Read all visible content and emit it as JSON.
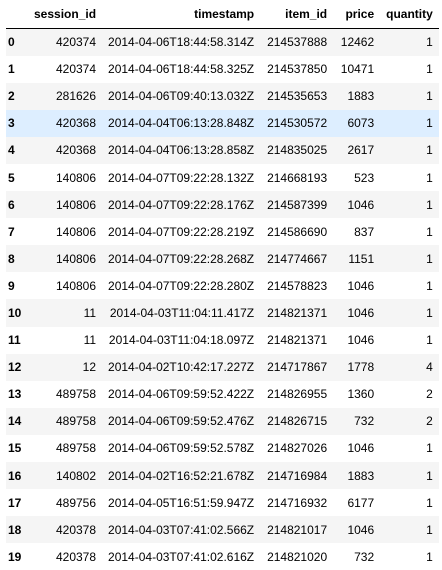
{
  "table": {
    "columns": [
      "",
      "session_id",
      "timestamp",
      "item_id",
      "price",
      "quantity"
    ],
    "highlighted_row": 3,
    "rows": [
      {
        "index": "0",
        "session_id": "420374",
        "timestamp": "2014-04-06T18:44:58.314Z",
        "item_id": "214537888",
        "price": "12462",
        "quantity": "1"
      },
      {
        "index": "1",
        "session_id": "420374",
        "timestamp": "2014-04-06T18:44:58.325Z",
        "item_id": "214537850",
        "price": "10471",
        "quantity": "1"
      },
      {
        "index": "2",
        "session_id": "281626",
        "timestamp": "2014-04-06T09:40:13.032Z",
        "item_id": "214535653",
        "price": "1883",
        "quantity": "1"
      },
      {
        "index": "3",
        "session_id": "420368",
        "timestamp": "2014-04-04T06:13:28.848Z",
        "item_id": "214530572",
        "price": "6073",
        "quantity": "1"
      },
      {
        "index": "4",
        "session_id": "420368",
        "timestamp": "2014-04-04T06:13:28.858Z",
        "item_id": "214835025",
        "price": "2617",
        "quantity": "1"
      },
      {
        "index": "5",
        "session_id": "140806",
        "timestamp": "2014-04-07T09:22:28.132Z",
        "item_id": "214668193",
        "price": "523",
        "quantity": "1"
      },
      {
        "index": "6",
        "session_id": "140806",
        "timestamp": "2014-04-07T09:22:28.176Z",
        "item_id": "214587399",
        "price": "1046",
        "quantity": "1"
      },
      {
        "index": "7",
        "session_id": "140806",
        "timestamp": "2014-04-07T09:22:28.219Z",
        "item_id": "214586690",
        "price": "837",
        "quantity": "1"
      },
      {
        "index": "8",
        "session_id": "140806",
        "timestamp": "2014-04-07T09:22:28.268Z",
        "item_id": "214774667",
        "price": "1151",
        "quantity": "1"
      },
      {
        "index": "9",
        "session_id": "140806",
        "timestamp": "2014-04-07T09:22:28.280Z",
        "item_id": "214578823",
        "price": "1046",
        "quantity": "1"
      },
      {
        "index": "10",
        "session_id": "11",
        "timestamp": "2014-04-03T11:04:11.417Z",
        "item_id": "214821371",
        "price": "1046",
        "quantity": "1"
      },
      {
        "index": "11",
        "session_id": "11",
        "timestamp": "2014-04-03T11:04:18.097Z",
        "item_id": "214821371",
        "price": "1046",
        "quantity": "1"
      },
      {
        "index": "12",
        "session_id": "12",
        "timestamp": "2014-04-02T10:42:17.227Z",
        "item_id": "214717867",
        "price": "1778",
        "quantity": "4"
      },
      {
        "index": "13",
        "session_id": "489758",
        "timestamp": "2014-04-06T09:59:52.422Z",
        "item_id": "214826955",
        "price": "1360",
        "quantity": "2"
      },
      {
        "index": "14",
        "session_id": "489758",
        "timestamp": "2014-04-06T09:59:52.476Z",
        "item_id": "214826715",
        "price": "732",
        "quantity": "2"
      },
      {
        "index": "15",
        "session_id": "489758",
        "timestamp": "2014-04-06T09:59:52.578Z",
        "item_id": "214827026",
        "price": "1046",
        "quantity": "1"
      },
      {
        "index": "16",
        "session_id": "140802",
        "timestamp": "2014-04-02T16:52:21.678Z",
        "item_id": "214716984",
        "price": "1883",
        "quantity": "1"
      },
      {
        "index": "17",
        "session_id": "489756",
        "timestamp": "2014-04-05T16:51:59.947Z",
        "item_id": "214716932",
        "price": "6177",
        "quantity": "1"
      },
      {
        "index": "18",
        "session_id": "420378",
        "timestamp": "2014-04-03T07:41:02.566Z",
        "item_id": "214821017",
        "price": "1046",
        "quantity": "1"
      },
      {
        "index": "19",
        "session_id": "420378",
        "timestamp": "2014-04-03T07:41:02.616Z",
        "item_id": "214821020",
        "price": "732",
        "quantity": "1"
      }
    ]
  }
}
